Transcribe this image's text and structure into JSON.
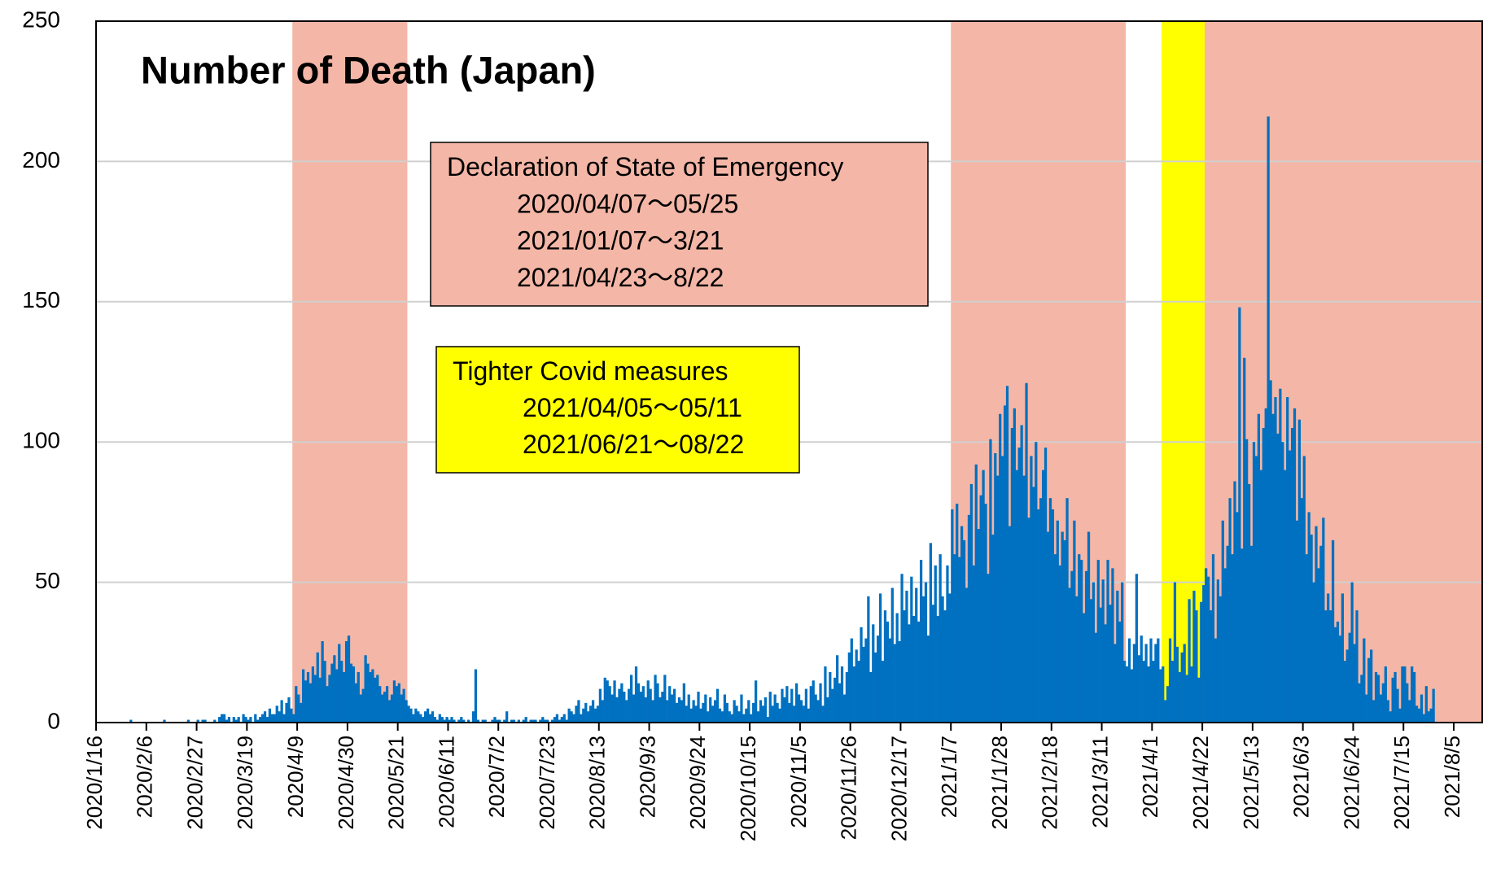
{
  "chart_data": {
    "type": "bar",
    "title": "Number of Death (Japan)",
    "color": "#0070c0",
    "categories": [
      "2020/1/16",
      null,
      null,
      null,
      null,
      null,
      null,
      null,
      null,
      null,
      null,
      null,
      null,
      null,
      null,
      null,
      null,
      null,
      null,
      null,
      null,
      "2020/2/6",
      null,
      null,
      null,
      null,
      null,
      null,
      null,
      null,
      null,
      null,
      null,
      null,
      null,
      null,
      null,
      null,
      null,
      null,
      null,
      null,
      "2020/2/27",
      null,
      null,
      null,
      null,
      null,
      null,
      null,
      null,
      null,
      null,
      null,
      null,
      null,
      null,
      null,
      null,
      null,
      null,
      null,
      null,
      "2020/3/19",
      null,
      null,
      null,
      null,
      null,
      null,
      null,
      null,
      null,
      null,
      null,
      null,
      null,
      null,
      null,
      null,
      null,
      null,
      null,
      null,
      "2020/4/9",
      null,
      null,
      null,
      null,
      null,
      null,
      null,
      null,
      null,
      null,
      null,
      null,
      null,
      null,
      null,
      null,
      null,
      null,
      null,
      null,
      "2020/4/30",
      null,
      null,
      null,
      null,
      null,
      null,
      null,
      null,
      null,
      null,
      null,
      null,
      null,
      null,
      null,
      null,
      null,
      null,
      null,
      null,
      "2020/5/21",
      null,
      null,
      null,
      null,
      null,
      null,
      null,
      null,
      null,
      null,
      null,
      null,
      null,
      null,
      null,
      null,
      null,
      null,
      null,
      null,
      "2020/6/11",
      null,
      null,
      null,
      null,
      null,
      null,
      null,
      null,
      null,
      null,
      null,
      null,
      null,
      null,
      null,
      null,
      null,
      null,
      null,
      null,
      "2020/7/2",
      null,
      null,
      null,
      null,
      null,
      null,
      null,
      null,
      null,
      null,
      null,
      null,
      null,
      null,
      null,
      null,
      null,
      null,
      null,
      null,
      "2020/7/23",
      null,
      null,
      null,
      null,
      null,
      null,
      null,
      null,
      null,
      null,
      null,
      null,
      null,
      null,
      null,
      null,
      null,
      null,
      null,
      null,
      "2020/8/13",
      null,
      null,
      null,
      null,
      null,
      null,
      null,
      null,
      null,
      null,
      null,
      null,
      null,
      null,
      null,
      null,
      null,
      null,
      null,
      null,
      "2020/9/3",
      null,
      null,
      null,
      null,
      null,
      null,
      null,
      null,
      null,
      null,
      null,
      null,
      null,
      null,
      null,
      null,
      null,
      null,
      null,
      null,
      "2020/9/24",
      null,
      null,
      null,
      null,
      null,
      null,
      null,
      null,
      null,
      null,
      null,
      null,
      null,
      null,
      null,
      null,
      null,
      null,
      null,
      null,
      "2020/10/15",
      null,
      null,
      null,
      null,
      null,
      null,
      null,
      null,
      null,
      null,
      null,
      null,
      null,
      null,
      null,
      null,
      null,
      null,
      null,
      null,
      "2020/11/5",
      null,
      null,
      null,
      null,
      null,
      null,
      null,
      null,
      null,
      null,
      null,
      null,
      null,
      null,
      null,
      null,
      null,
      null,
      null,
      null,
      "2020/11/26",
      null,
      null,
      null,
      null,
      null,
      null,
      null,
      null,
      null,
      null,
      null,
      null,
      null,
      null,
      null,
      null,
      null,
      null,
      null,
      null,
      "2020/12/17",
      null,
      null,
      null,
      null,
      null,
      null,
      null,
      null,
      null,
      null,
      null,
      null,
      null,
      null,
      null,
      null,
      null,
      null,
      null,
      null,
      "2021/1/7",
      null,
      null,
      null,
      null,
      null,
      null,
      null,
      null,
      null,
      null,
      null,
      null,
      null,
      null,
      null,
      null,
      null,
      null,
      null,
      null,
      "2021/1/28",
      null,
      null,
      null,
      null,
      null,
      null,
      null,
      null,
      null,
      null,
      null,
      null,
      null,
      null,
      null,
      null,
      null,
      null,
      null,
      null,
      "2021/2/18",
      null,
      null,
      null,
      null,
      null,
      null,
      null,
      null,
      null,
      null,
      null,
      null,
      null,
      null,
      null,
      null,
      null,
      null,
      null,
      null,
      "2021/3/11",
      null,
      null,
      null,
      null,
      null,
      null,
      null,
      null,
      null,
      null,
      null,
      null,
      null,
      null,
      null,
      null,
      null,
      null,
      null,
      null,
      "2021/4/1",
      null,
      null,
      null,
      null,
      null,
      null,
      null,
      null,
      null,
      null,
      null,
      null,
      null,
      null,
      null,
      null,
      null,
      null,
      null,
      null,
      "2021/4/22",
      null,
      null,
      null,
      null,
      null,
      null,
      null,
      null,
      null,
      null,
      null,
      null,
      null,
      null,
      null,
      null,
      null,
      null,
      null,
      null,
      "2021/5/13",
      null,
      null,
      null,
      null,
      null,
      null,
      null,
      null,
      null,
      null,
      null,
      null,
      null,
      null,
      null,
      null,
      null,
      null,
      null,
      null,
      "2021/6/3",
      null,
      null,
      null,
      null,
      null,
      null,
      null,
      null,
      null,
      null,
      null,
      null,
      null,
      null,
      null,
      null,
      null,
      null,
      null,
      null,
      "2021/6/24",
      null,
      null,
      null,
      null,
      null,
      null,
      null,
      null,
      null,
      null,
      null,
      null,
      null,
      null,
      null,
      null,
      null,
      null,
      null,
      null,
      "2021/7/15",
      null,
      null,
      null,
      null,
      null,
      null,
      null,
      null,
      null,
      null,
      null,
      null,
      null,
      null,
      null,
      null,
      null,
      null,
      null,
      null,
      "2021/8/5"
    ],
    "values": [
      0,
      0,
      0,
      0,
      0,
      0,
      0,
      0,
      0,
      0,
      0,
      0,
      0,
      0,
      1,
      0,
      0,
      0,
      0,
      0,
      0,
      0,
      0,
      0,
      0,
      0,
      0,
      0,
      1,
      0,
      0,
      0,
      0,
      0,
      0,
      0,
      0,
      0,
      1,
      0,
      0,
      0,
      1,
      0,
      1,
      1,
      0,
      0,
      0,
      1,
      0,
      2,
      3,
      3,
      1,
      2,
      0,
      2,
      1,
      2,
      0,
      3,
      2,
      1,
      2,
      0,
      3,
      1,
      2,
      3,
      4,
      2,
      5,
      3,
      3,
      6,
      4,
      8,
      3,
      7,
      9,
      5,
      3,
      13,
      10,
      7,
      19,
      15,
      18,
      14,
      20,
      17,
      25,
      16,
      29,
      22,
      13,
      17,
      21,
      24,
      19,
      28,
      22,
      18,
      29,
      31,
      21,
      20,
      14,
      18,
      10,
      12,
      24,
      21,
      18,
      19,
      16,
      17,
      13,
      10,
      11,
      13,
      8,
      10,
      15,
      13,
      14,
      10,
      12,
      8,
      6,
      5,
      3,
      5,
      4,
      3,
      2,
      4,
      5,
      3,
      4,
      2,
      1,
      3,
      2,
      1,
      2,
      1,
      2,
      1,
      0,
      1,
      2,
      1,
      0,
      1,
      0,
      4,
      19,
      1,
      0,
      1,
      1,
      0,
      0,
      1,
      2,
      1,
      1,
      0,
      1,
      4,
      0,
      1,
      1,
      0,
      1,
      0,
      1,
      2,
      0,
      1,
      1,
      1,
      0,
      1,
      2,
      1,
      1,
      0,
      1,
      2,
      3,
      1,
      2,
      3,
      1,
      5,
      4,
      3,
      6,
      8,
      3,
      5,
      7,
      4,
      6,
      8,
      5,
      6,
      12,
      8,
      16,
      15,
      13,
      10,
      15,
      9,
      12,
      14,
      11,
      8,
      12,
      17,
      10,
      20,
      14,
      11,
      13,
      9,
      15,
      12,
      8,
      17,
      14,
      9,
      11,
      17,
      8,
      13,
      10,
      12,
      7,
      9,
      8,
      14,
      6,
      10,
      5,
      8,
      6,
      11,
      5,
      7,
      10,
      4,
      9,
      6,
      8,
      12,
      5,
      4,
      10,
      7,
      4,
      3,
      8,
      6,
      4,
      10,
      3,
      5,
      8,
      3,
      7,
      15,
      4,
      8,
      6,
      9,
      2,
      11,
      6,
      10,
      7,
      5,
      12,
      9,
      13,
      7,
      12,
      6,
      14,
      10,
      8,
      6,
      12,
      5,
      13,
      15,
      10,
      8,
      14,
      6,
      20,
      9,
      18,
      12,
      16,
      24,
      14,
      20,
      10,
      18,
      25,
      30,
      20,
      26,
      22,
      34,
      27,
      30,
      45,
      18,
      35,
      25,
      31,
      46,
      22,
      40,
      36,
      30,
      48,
      28,
      39,
      29,
      53,
      40,
      47,
      35,
      52,
      38,
      48,
      36,
      58,
      45,
      50,
      31,
      64,
      42,
      56,
      38,
      60,
      45,
      40,
      56,
      46,
      76,
      60,
      78,
      59,
      70,
      65,
      48,
      74,
      85,
      56,
      92,
      69,
      81,
      90,
      78,
      53,
      101,
      67,
      96,
      88,
      110,
      95,
      113,
      120,
      70,
      105,
      112,
      90,
      98,
      106,
      88,
      121,
      73,
      95,
      84,
      100,
      76,
      80,
      90,
      98,
      68,
      80,
      76,
      60,
      72,
      56,
      68,
      65,
      80,
      48,
      54,
      72,
      45,
      60,
      58,
      39,
      54,
      68,
      44,
      50,
      32,
      58,
      41,
      51,
      35,
      58,
      42,
      55,
      28,
      47,
      36,
      50,
      22,
      20,
      30,
      19,
      28,
      53,
      24,
      31,
      22,
      28,
      20,
      30,
      22,
      28,
      30,
      19,
      20,
      8,
      13,
      30,
      22,
      50,
      27,
      18,
      25,
      28,
      17,
      44,
      20,
      47,
      40,
      16,
      43,
      49,
      55,
      52,
      40,
      60,
      30,
      51,
      45,
      72,
      55,
      63,
      80,
      60,
      86,
      75,
      148,
      62,
      130,
      101,
      85,
      63,
      100,
      95,
      110,
      90,
      105,
      112,
      216,
      122,
      110,
      116,
      103,
      119,
      100,
      90,
      116,
      97,
      105,
      112,
      72,
      108,
      80,
      95,
      60,
      75,
      67,
      50,
      70,
      55,
      63,
      73,
      40,
      46,
      40,
      65,
      34,
      36,
      31,
      46,
      22,
      26,
      32,
      50,
      28,
      40,
      14,
      17,
      30,
      10,
      23,
      26,
      8,
      18,
      17,
      10,
      14,
      20,
      8,
      4,
      16,
      18,
      12,
      5,
      20,
      20,
      14,
      8,
      20,
      18,
      6,
      5,
      10,
      3,
      13,
      4,
      5,
      12,
      null,
      null,
      null,
      null,
      null,
      null,
      null,
      null,
      null
    ],
    "ylim": [
      0,
      250
    ],
    "yticks": [
      0,
      50,
      100,
      150,
      200,
      250
    ],
    "grid": true,
    "bands": [
      {
        "from": "2020/4/7",
        "to": "2020/5/25",
        "color": "#f4b6a6"
      },
      {
        "from": "2021/1/7",
        "to": "2021/3/21",
        "color": "#f4b6a6"
      },
      {
        "from": "2021/4/5",
        "to": "2021/4/23",
        "color": "#ffff00"
      },
      {
        "from": "2021/4/23",
        "to": "2021/8/22",
        "color": "#f4b6a6"
      }
    ],
    "annotations": [
      {
        "lines": [
          "Declaration of State of Emergency",
          "2020/04/07〜05/25",
          "2021/01/07〜3/21",
          "2021/04/23〜8/22"
        ],
        "color": "#f4b6a6"
      },
      {
        "lines": [
          "Tighter Covid measures",
          "2021/04/05〜05/11",
          "2021/06/21〜08/22"
        ],
        "color": "#ffff00"
      }
    ]
  }
}
